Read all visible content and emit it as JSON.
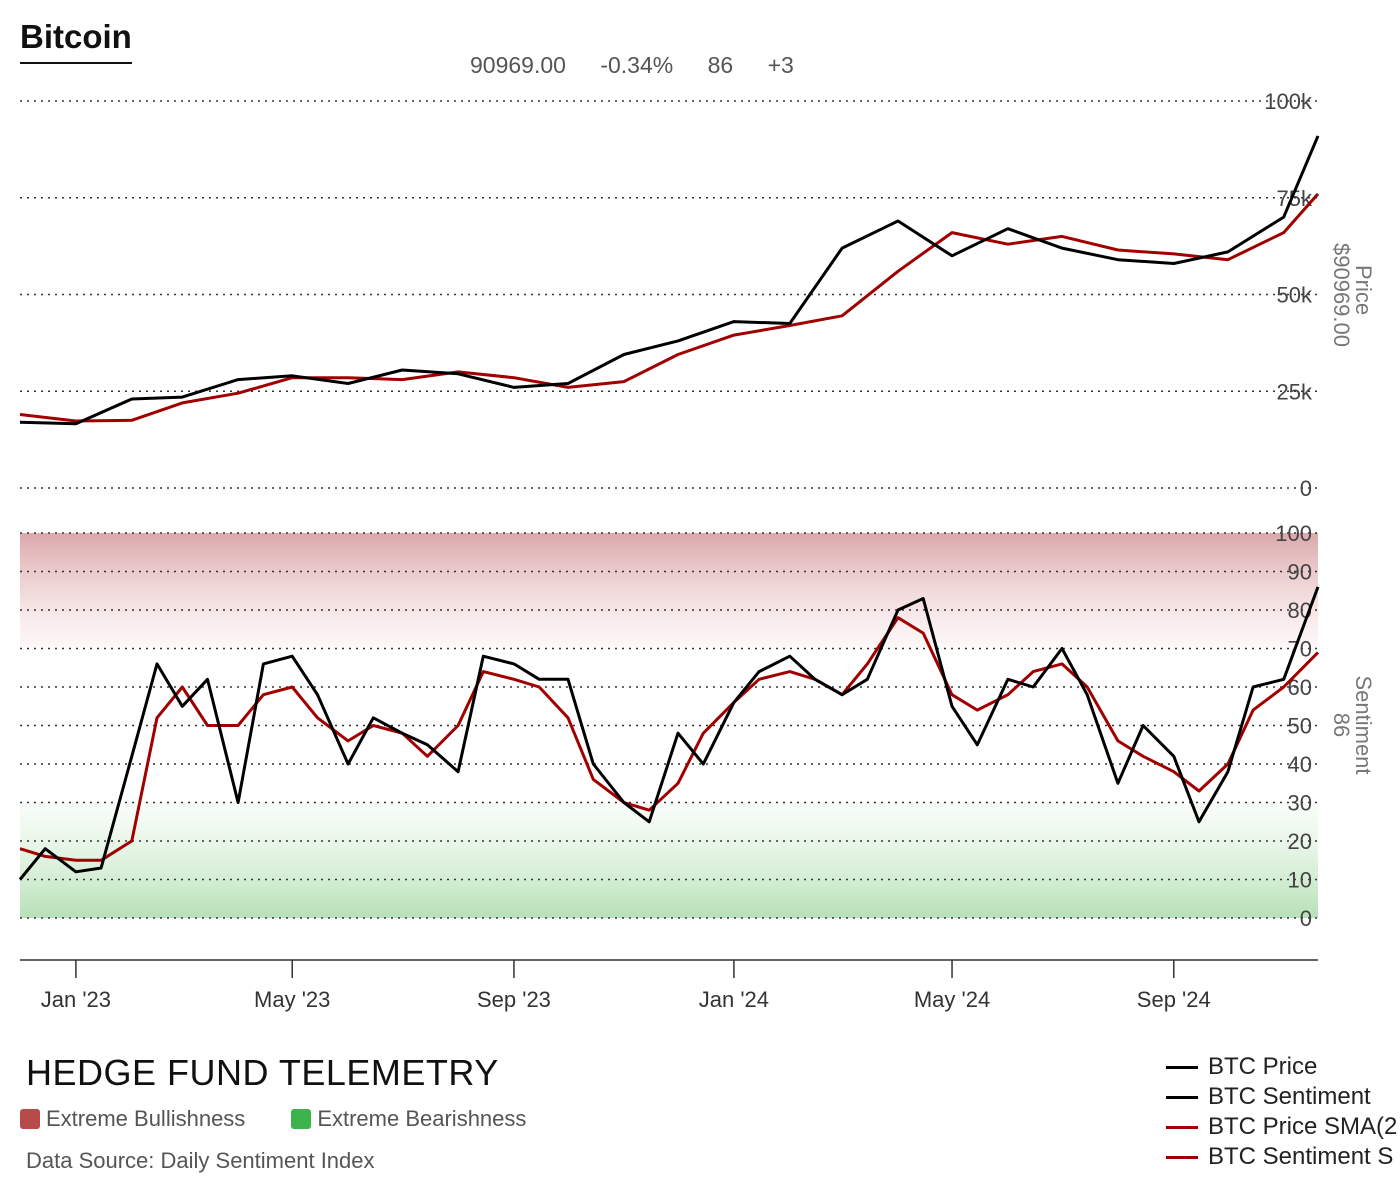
{
  "title": "Bitcoin",
  "readout": {
    "price": "90969.00",
    "change": "-0.34%",
    "sentiment": "86",
    "sentiment_change": "+3"
  },
  "axes": {
    "price_label": "Price",
    "price_value": "$90969.00",
    "sentiment_label": "Sentiment",
    "sentiment_value": "86"
  },
  "brand": "HEDGE FUND TELEMETRY",
  "zones": [
    {
      "label": "Extreme Bullishness",
      "color": "#b94a4a"
    },
    {
      "label": "Extreme Bearishness",
      "color": "#3cb44b"
    }
  ],
  "source": "Data Source: Daily Sentiment Index",
  "colors": {
    "price": "#000000",
    "sma": "#a00000",
    "grid": "#333333",
    "bull_zone": "#d9a3a6",
    "bear_zone": "#b3dfb3"
  },
  "chart_data": [
    {
      "type": "line",
      "title": "Bitcoin",
      "ylabel": "Price",
      "ylim": [
        0,
        100000
      ],
      "yticks": [
        0,
        25000,
        50000,
        75000,
        100000
      ],
      "ytick_labels": [
        "0",
        "25k",
        "50k",
        "75k",
        "100k"
      ],
      "grid": true,
      "x": [
        "2022-12-01",
        "2023-01-01",
        "2023-02-01",
        "2023-03-01",
        "2023-04-01",
        "2023-05-01",
        "2023-06-01",
        "2023-07-01",
        "2023-08-01",
        "2023-09-01",
        "2023-10-01",
        "2023-11-01",
        "2023-12-01",
        "2024-01-01",
        "2024-02-01",
        "2024-03-01",
        "2024-04-01",
        "2024-05-01",
        "2024-06-01",
        "2024-07-01",
        "2024-08-01",
        "2024-09-01",
        "2024-10-01",
        "2024-11-01",
        "2024-11-20"
      ],
      "series": [
        {
          "name": "BTC Price",
          "values": [
            17000,
            16600,
            23000,
            23500,
            28000,
            29000,
            27000,
            30500,
            29500,
            26000,
            27000,
            34500,
            38000,
            43000,
            42500,
            62000,
            69000,
            60000,
            67000,
            62000,
            59000,
            58000,
            61000,
            70000,
            90969
          ]
        },
        {
          "name": "BTC Price SMA(2",
          "values": [
            19000,
            17300,
            17500,
            22000,
            24500,
            28500,
            28500,
            28000,
            30000,
            28500,
            26000,
            27500,
            34500,
            39500,
            42000,
            44500,
            56000,
            66000,
            63000,
            65000,
            61500,
            60500,
            59000,
            66000,
            76000
          ]
        }
      ],
      "legend": "bottom-right"
    },
    {
      "type": "line",
      "ylabel": "Sentiment",
      "ylim": [
        0,
        100
      ],
      "yticks": [
        0,
        10,
        20,
        30,
        40,
        50,
        60,
        70,
        80,
        90,
        100
      ],
      "zones": [
        {
          "from": 0,
          "to": 25,
          "label": "Extreme Bearishness"
        },
        {
          "from": 75,
          "to": 100,
          "label": "Extreme Bullishness"
        }
      ],
      "grid": true,
      "x": [
        "2022-12-01",
        "2022-12-15",
        "2023-01-01",
        "2023-01-15",
        "2023-02-01",
        "2023-02-15",
        "2023-03-01",
        "2023-03-15",
        "2023-04-01",
        "2023-04-15",
        "2023-05-01",
        "2023-05-15",
        "2023-06-01",
        "2023-06-15",
        "2023-07-01",
        "2023-07-15",
        "2023-08-01",
        "2023-08-15",
        "2023-09-01",
        "2023-09-15",
        "2023-10-01",
        "2023-10-15",
        "2023-11-01",
        "2023-11-15",
        "2023-12-01",
        "2023-12-15",
        "2024-01-01",
        "2024-01-15",
        "2024-02-01",
        "2024-02-15",
        "2024-03-01",
        "2024-03-15",
        "2024-04-01",
        "2024-04-15",
        "2024-05-01",
        "2024-05-15",
        "2024-06-01",
        "2024-06-15",
        "2024-07-01",
        "2024-07-15",
        "2024-08-01",
        "2024-08-15",
        "2024-09-01",
        "2024-09-15",
        "2024-10-01",
        "2024-10-15",
        "2024-11-01",
        "2024-11-20"
      ],
      "series": [
        {
          "name": "BTC Sentiment",
          "values": [
            10,
            18,
            12,
            13,
            42,
            66,
            55,
            62,
            30,
            66,
            68,
            58,
            40,
            52,
            48,
            45,
            38,
            68,
            66,
            62,
            62,
            40,
            30,
            25,
            48,
            40,
            56,
            64,
            68,
            62,
            58,
            62,
            80,
            83,
            55,
            45,
            62,
            60,
            70,
            58,
            35,
            50,
            42,
            25,
            38,
            60,
            62,
            86
          ]
        },
        {
          "name": "BTC Sentiment S",
          "values": [
            18,
            16,
            15,
            15,
            20,
            52,
            60,
            50,
            50,
            58,
            60,
            52,
            46,
            50,
            48,
            42,
            50,
            64,
            62,
            60,
            52,
            36,
            30,
            28,
            35,
            48,
            56,
            62,
            64,
            62,
            58,
            66,
            78,
            74,
            58,
            54,
            58,
            64,
            66,
            60,
            46,
            42,
            38,
            33,
            40,
            54,
            60,
            69
          ]
        }
      ],
      "legend": "bottom-right"
    }
  ],
  "x_axis": {
    "ticks": [
      "Jan '23",
      "May '23",
      "Sep '23",
      "Jan '24",
      "May '24",
      "Sep '24"
    ]
  }
}
